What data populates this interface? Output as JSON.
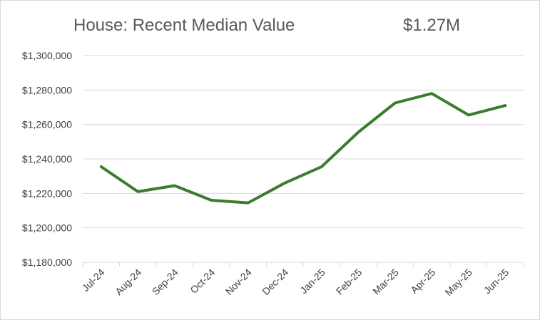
{
  "chart_data": {
    "type": "line",
    "title": "House: Recent Median Value",
    "headline_value": "$1.27M",
    "xlabel": "",
    "ylabel": "",
    "categories": [
      "Jul-24",
      "Aug-24",
      "Sep-24",
      "Oct-24",
      "Nov-24",
      "Dec-24",
      "Jan-25",
      "Feb-25",
      "Mar-25",
      "Apr-25",
      "May-25",
      "Jun-25"
    ],
    "series": [
      {
        "color": "#3a7d2c",
        "values": [
          1235500,
          1221000,
          1224500,
          1216000,
          1214500,
          1226000,
          1235500,
          1255500,
          1272500,
          1278000,
          1265500,
          1271000
        ]
      }
    ],
    "ylim": [
      1180000,
      1300000
    ],
    "yticks": [
      1180000,
      1200000,
      1220000,
      1240000,
      1260000,
      1280000,
      1300000
    ],
    "ytick_labels": [
      "$1,180,000",
      "$1,200,000",
      "$1,220,000",
      "$1,240,000",
      "$1,260,000",
      "$1,280,000",
      "$1,300,000"
    ],
    "grid": true,
    "legend": "none"
  }
}
